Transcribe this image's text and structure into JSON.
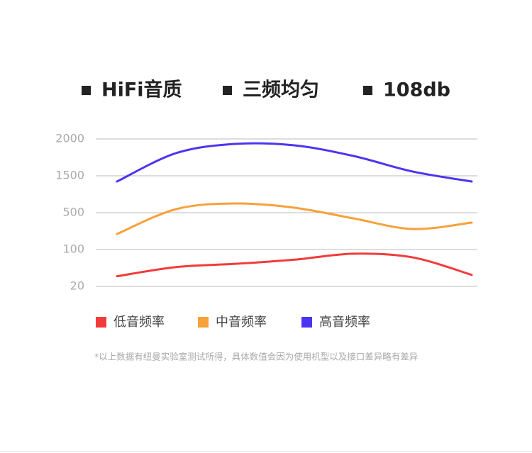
{
  "header": [
    "HiFi音质",
    "三频均匀",
    "108db"
  ],
  "chart_data": {
    "type": "line",
    "ylim": [
      20,
      2000
    ],
    "yticks": [
      20,
      100,
      500,
      1500,
      2000
    ],
    "grid": true,
    "series": [
      {
        "name": "低音频率",
        "color": "#f23b3b",
        "values": [
          42,
          62,
          69,
          78,
          91,
          83,
          45
        ]
      },
      {
        "name": "中音频率",
        "color": "#f7a13a",
        "values": [
          269,
          596,
          750,
          635,
          438,
          323,
          392
        ]
      },
      {
        "name": "高音频率",
        "color": "#4c35f0",
        "values": [
          1346,
          1808,
          1933,
          1913,
          1769,
          1558,
          1346
        ]
      }
    ]
  },
  "footnote": "*以上数据有纽曼实验室测试所得，具体数值会因为使用机型以及接口差异略有差异"
}
